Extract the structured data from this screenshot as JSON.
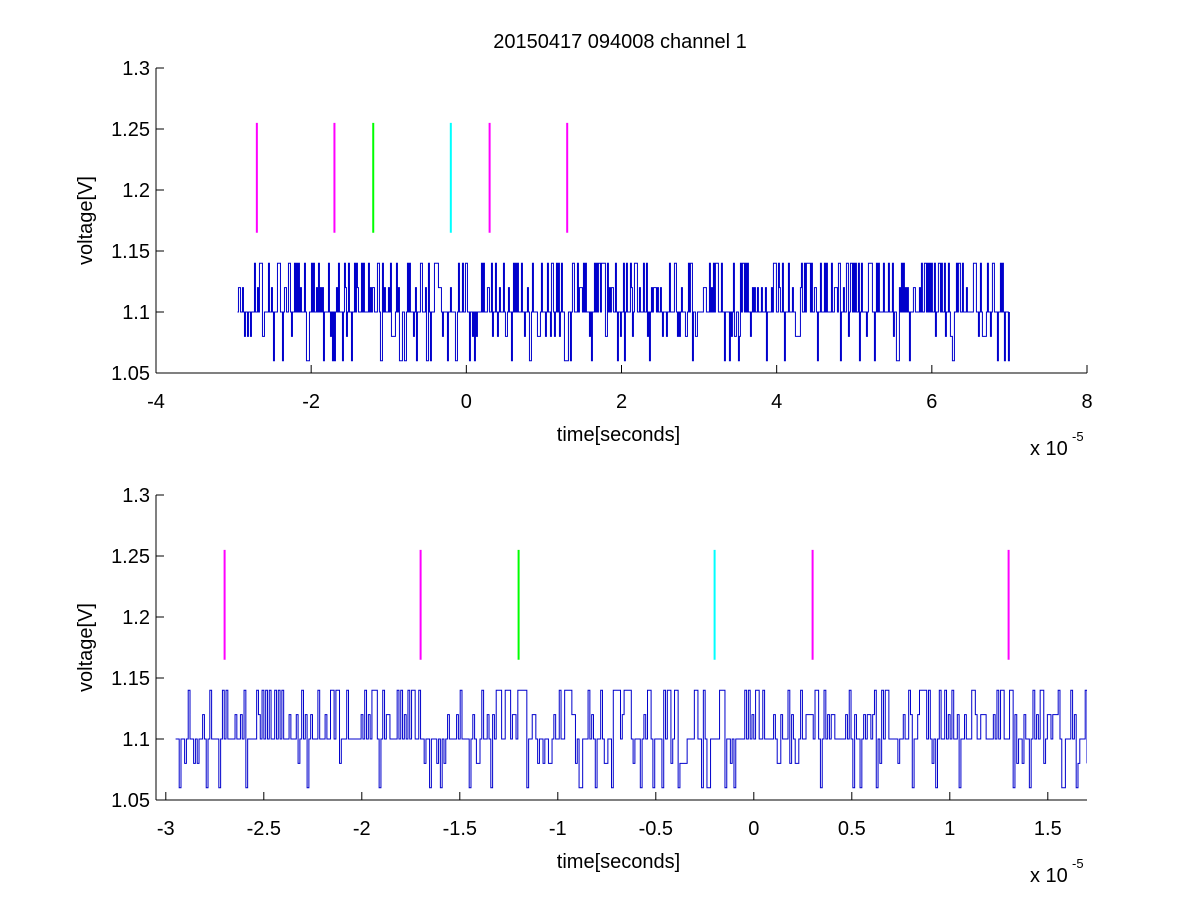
{
  "figure": {
    "title": "20150417 094008 channel 1"
  },
  "chart_data": [
    {
      "type": "line",
      "title": "20150417 094008 channel 1",
      "xlabel": "time[seconds]",
      "ylabel": "voltage[V]",
      "x_multiplier_label": "x 10",
      "x_multiplier_exponent": "-5",
      "xlim": [
        -4,
        8
      ],
      "ylim": [
        1.05,
        1.3
      ],
      "x_ticks": [
        -4,
        -2,
        0,
        2,
        4,
        6,
        8
      ],
      "x_tick_labels": [
        "-4",
        "-2",
        "0",
        "2",
        "4",
        "6",
        "8"
      ],
      "y_ticks": [
        1.05,
        1.1,
        1.15,
        1.2,
        1.25,
        1.3
      ],
      "y_tick_labels": [
        "1.05",
        "1.1",
        "1.15",
        "1.2",
        "1.25",
        "1.3"
      ],
      "grid": false,
      "signal": {
        "color": "#0000cc",
        "x_start": -2.95,
        "x_end": 7.0,
        "levels": [
          1.06,
          1.08,
          1.1,
          1.12,
          1.14
        ],
        "baseline": 1.1
      },
      "markers": {
        "y_bottom": 1.165,
        "y_top": 1.255,
        "items": [
          {
            "x": -2.7,
            "color": "#ff00ff"
          },
          {
            "x": -1.7,
            "color": "#ff00ff"
          },
          {
            "x": -1.2,
            "color": "#00ff00"
          },
          {
            "x": -0.2,
            "color": "#00ffff"
          },
          {
            "x": 0.3,
            "color": "#ff00ff"
          },
          {
            "x": 1.3,
            "color": "#ff00ff"
          }
        ]
      }
    },
    {
      "type": "line",
      "title": "",
      "xlabel": "time[seconds]",
      "ylabel": "voltage[V]",
      "x_multiplier_label": "x 10",
      "x_multiplier_exponent": "-5",
      "xlim": [
        -3.05,
        1.7
      ],
      "ylim": [
        1.05,
        1.3
      ],
      "x_ticks": [
        -3,
        -2.5,
        -2,
        -1.5,
        -1,
        -0.5,
        0,
        0.5,
        1,
        1.5
      ],
      "x_tick_labels": [
        "-3",
        "-2.5",
        "-2",
        "-1.5",
        "-1",
        "-0.5",
        "0",
        "0.5",
        "1",
        "1.5"
      ],
      "y_ticks": [
        1.05,
        1.1,
        1.15,
        1.2,
        1.25,
        1.3
      ],
      "y_tick_labels": [
        "1.05",
        "1.1",
        "1.15",
        "1.2",
        "1.25",
        "1.3"
      ],
      "grid": false,
      "signal": {
        "color": "#0000cc",
        "x_start": -2.95,
        "x_end": 1.7,
        "levels": [
          1.06,
          1.08,
          1.1,
          1.12,
          1.14
        ],
        "baseline": 1.1
      },
      "markers": {
        "y_bottom": 1.165,
        "y_top": 1.255,
        "items": [
          {
            "x": -2.7,
            "color": "#ff00ff"
          },
          {
            "x": -1.7,
            "color": "#ff00ff"
          },
          {
            "x": -1.2,
            "color": "#00ff00"
          },
          {
            "x": -0.2,
            "color": "#00ffff"
          },
          {
            "x": 0.3,
            "color": "#ff00ff"
          },
          {
            "x": 1.3,
            "color": "#ff00ff"
          }
        ]
      }
    }
  ]
}
